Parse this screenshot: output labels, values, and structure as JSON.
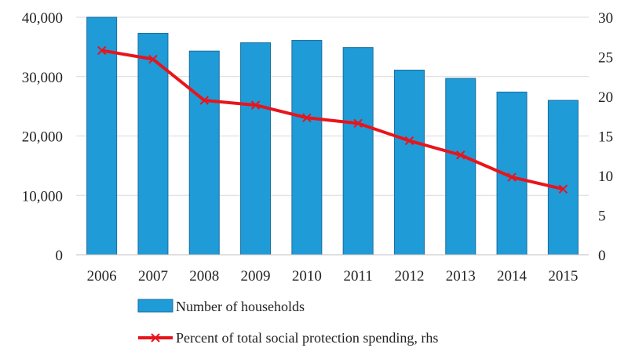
{
  "chart_data": {
    "type": "bar+line",
    "categories": [
      "2006",
      "2007",
      "2008",
      "2009",
      "2010",
      "2011",
      "2012",
      "2013",
      "2014",
      "2015"
    ],
    "series": [
      {
        "name": "Number of households",
        "type": "bar",
        "axis": "left",
        "color": "#1f9bd7",
        "values": [
          40200,
          37300,
          34300,
          35700,
          36100,
          34900,
          31100,
          29700,
          27400,
          26000
        ]
      },
      {
        "name": "Percent of total social protection spending, rhs",
        "type": "line",
        "axis": "right",
        "color": "#e8141c",
        "marker": "x",
        "values": [
          25.8,
          24.7,
          19.5,
          18.9,
          17.3,
          16.6,
          14.4,
          12.6,
          9.8,
          8.3
        ]
      }
    ],
    "y_left": {
      "min": 0,
      "max": 40000,
      "ticks": [
        0,
        10000,
        20000,
        30000,
        40000
      ],
      "tick_labels": [
        "0",
        "10,000",
        "20,000",
        "30,000",
        "40,000"
      ]
    },
    "y_right": {
      "min": 0,
      "max": 30,
      "ticks": [
        0,
        5,
        10,
        15,
        20,
        25,
        30
      ],
      "tick_labels": [
        "0",
        "5",
        "10",
        "15",
        "20",
        "25",
        "30"
      ]
    },
    "grid": true,
    "legend_position": "bottom",
    "title": "",
    "xlabel": "",
    "ylabel": ""
  }
}
